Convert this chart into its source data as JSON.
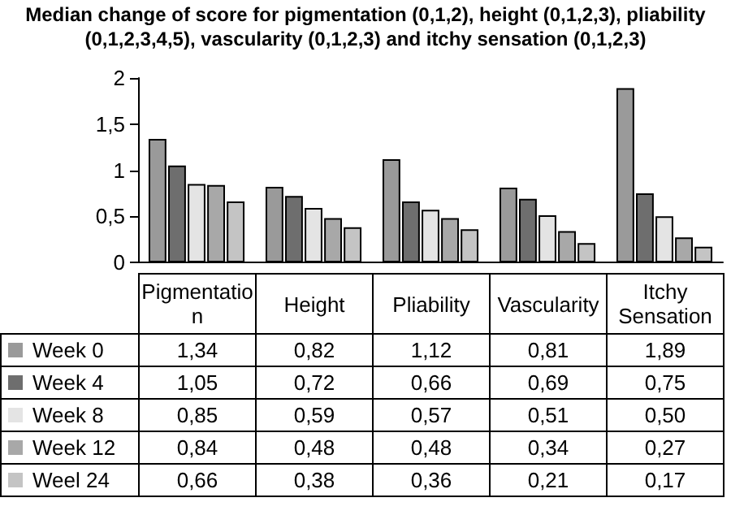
{
  "chart_data": {
    "type": "bar",
    "title": "Median change of score for pigmentation (0,1,2), height (0,1,2,3), pliability (0,1,2,3,4,5), vascularity (0,1,2,3) and itchy sensation (0,1,2,3)",
    "categories": [
      "Pigmentation",
      "Height",
      "Pliability",
      "Vascularity",
      "Itchy Sensation"
    ],
    "series": [
      {
        "name": "Week 0",
        "color": "#9a9a9a",
        "values": [
          1.34,
          0.82,
          1.12,
          0.81,
          1.89
        ],
        "value_labels": [
          "1,34",
          "0,82",
          "1,12",
          "0,81",
          "1,89"
        ]
      },
      {
        "name": "Week 4",
        "color": "#6e6e6e",
        "values": [
          1.05,
          0.72,
          0.66,
          0.69,
          0.75
        ],
        "value_labels": [
          "1,05",
          "0,72",
          "0,66",
          "0,69",
          "0,75"
        ]
      },
      {
        "name": "Week 8",
        "color": "#e4e4e4",
        "values": [
          0.85,
          0.59,
          0.57,
          0.51,
          0.5
        ],
        "value_labels": [
          "0,85",
          "0,59",
          "0,57",
          "0,51",
          "0,50"
        ]
      },
      {
        "name": "Week 12",
        "color": "#a8a8a8",
        "values": [
          0.84,
          0.48,
          0.48,
          0.34,
          0.27
        ],
        "value_labels": [
          "0,84",
          "0,48",
          "0,48",
          "0,34",
          "0,27"
        ]
      },
      {
        "name": "Weel 24",
        "color": "#c4c4c4",
        "values": [
          0.66,
          0.38,
          0.36,
          0.21,
          0.17
        ],
        "value_labels": [
          "0,66",
          "0,38",
          "0,36",
          "0,21",
          "0,17"
        ]
      }
    ],
    "ylim": [
      0,
      2
    ],
    "yticks": [
      0,
      {
        "value": 0.5,
        "label": "0,5"
      },
      1,
      {
        "value": 1.5,
        "label": "1,5"
      },
      2
    ],
    "legend": "bottom"
  }
}
